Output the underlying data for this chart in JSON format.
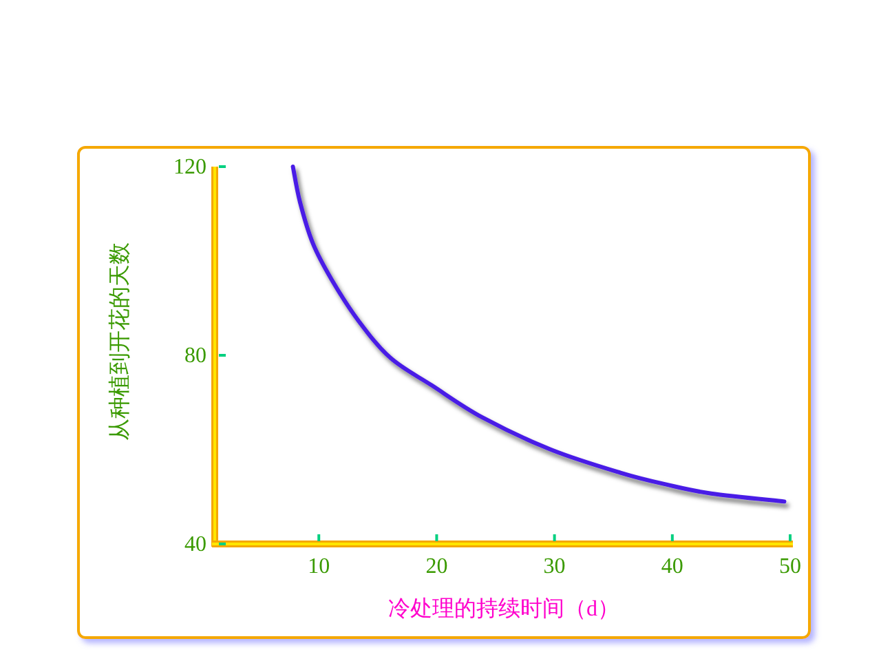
{
  "chart_data": {
    "type": "line",
    "xlabel": "冷处理的持续时间（d）",
    "ylabel": "从种植到开花的天数",
    "xlim": [
      1.4,
      50
    ],
    "ylim": [
      40,
      120
    ],
    "xticks": [
      10,
      20,
      30,
      40,
      50
    ],
    "yticks": [
      40,
      80,
      120
    ],
    "grid": false,
    "marker": "none",
    "line_style": "solid",
    "series": [
      {
        "color": "#4a1ee6",
        "x": [
          7.8,
          8.4,
          9.5,
          11.1,
          13.4,
          16.1,
          19.6,
          23.9,
          29.7,
          35.6,
          39.5,
          43.3,
          49.5
        ],
        "values": [
          120,
          112.5,
          103.7,
          96,
          87.2,
          79.4,
          73.6,
          66.8,
          60,
          55.1,
          52.6,
          50.7,
          49
        ]
      }
    ]
  }
}
